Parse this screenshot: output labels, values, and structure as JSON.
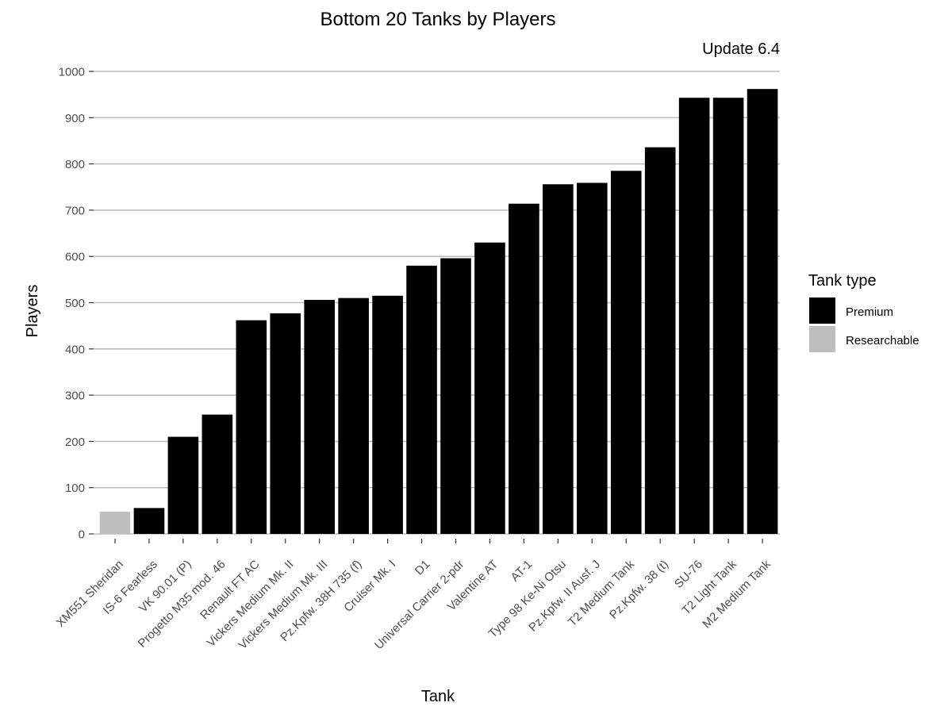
{
  "chart_data": {
    "type": "bar",
    "title": "Bottom 20 Tanks by Players",
    "subtitle": "Update 6.4",
    "xlabel": "Tank",
    "ylabel": "Players",
    "ylim": [
      0,
      1000
    ],
    "yticks": [
      0,
      100,
      200,
      300,
      400,
      500,
      600,
      700,
      800,
      900,
      1000
    ],
    "grid": true,
    "legend": {
      "title": "Tank type",
      "position": "right",
      "entries": [
        {
          "label": "Premium",
          "color": "#000000"
        },
        {
          "label": "Researchable",
          "color": "#bebebe"
        }
      ]
    },
    "categories": [
      "XM551 Sheridan",
      "IS-6 Fearless",
      "VK 90.01 (P)",
      "Progetto M35 mod. 46",
      "Renault FT AC",
      "Vickers Medium Mk. II",
      "Vickers Medium Mk. III",
      "Pz.Kpfw. 38H 735 (f)",
      "Cruiser Mk. I",
      "D1",
      "Universal Carrier 2-pdr",
      "Valentine AT",
      "AT-1",
      "Type 98 Ke-Ni Otsu",
      "Pz.Kpfw. II Ausf. J",
      "T2 Medium Tank",
      "Pz.Kpfw. 38 (t)",
      "SU-76",
      "T2 Light Tank",
      "M2 Medium Tank"
    ],
    "values": [
      48,
      56,
      210,
      258,
      462,
      477,
      506,
      510,
      515,
      580,
      596,
      630,
      714,
      756,
      759,
      785,
      836,
      943,
      943,
      962
    ],
    "types": [
      "Researchable",
      "Premium",
      "Premium",
      "Premium",
      "Premium",
      "Premium",
      "Premium",
      "Premium",
      "Premium",
      "Premium",
      "Premium",
      "Premium",
      "Premium",
      "Premium",
      "Premium",
      "Premium",
      "Premium",
      "Premium",
      "Premium",
      "Premium"
    ]
  }
}
